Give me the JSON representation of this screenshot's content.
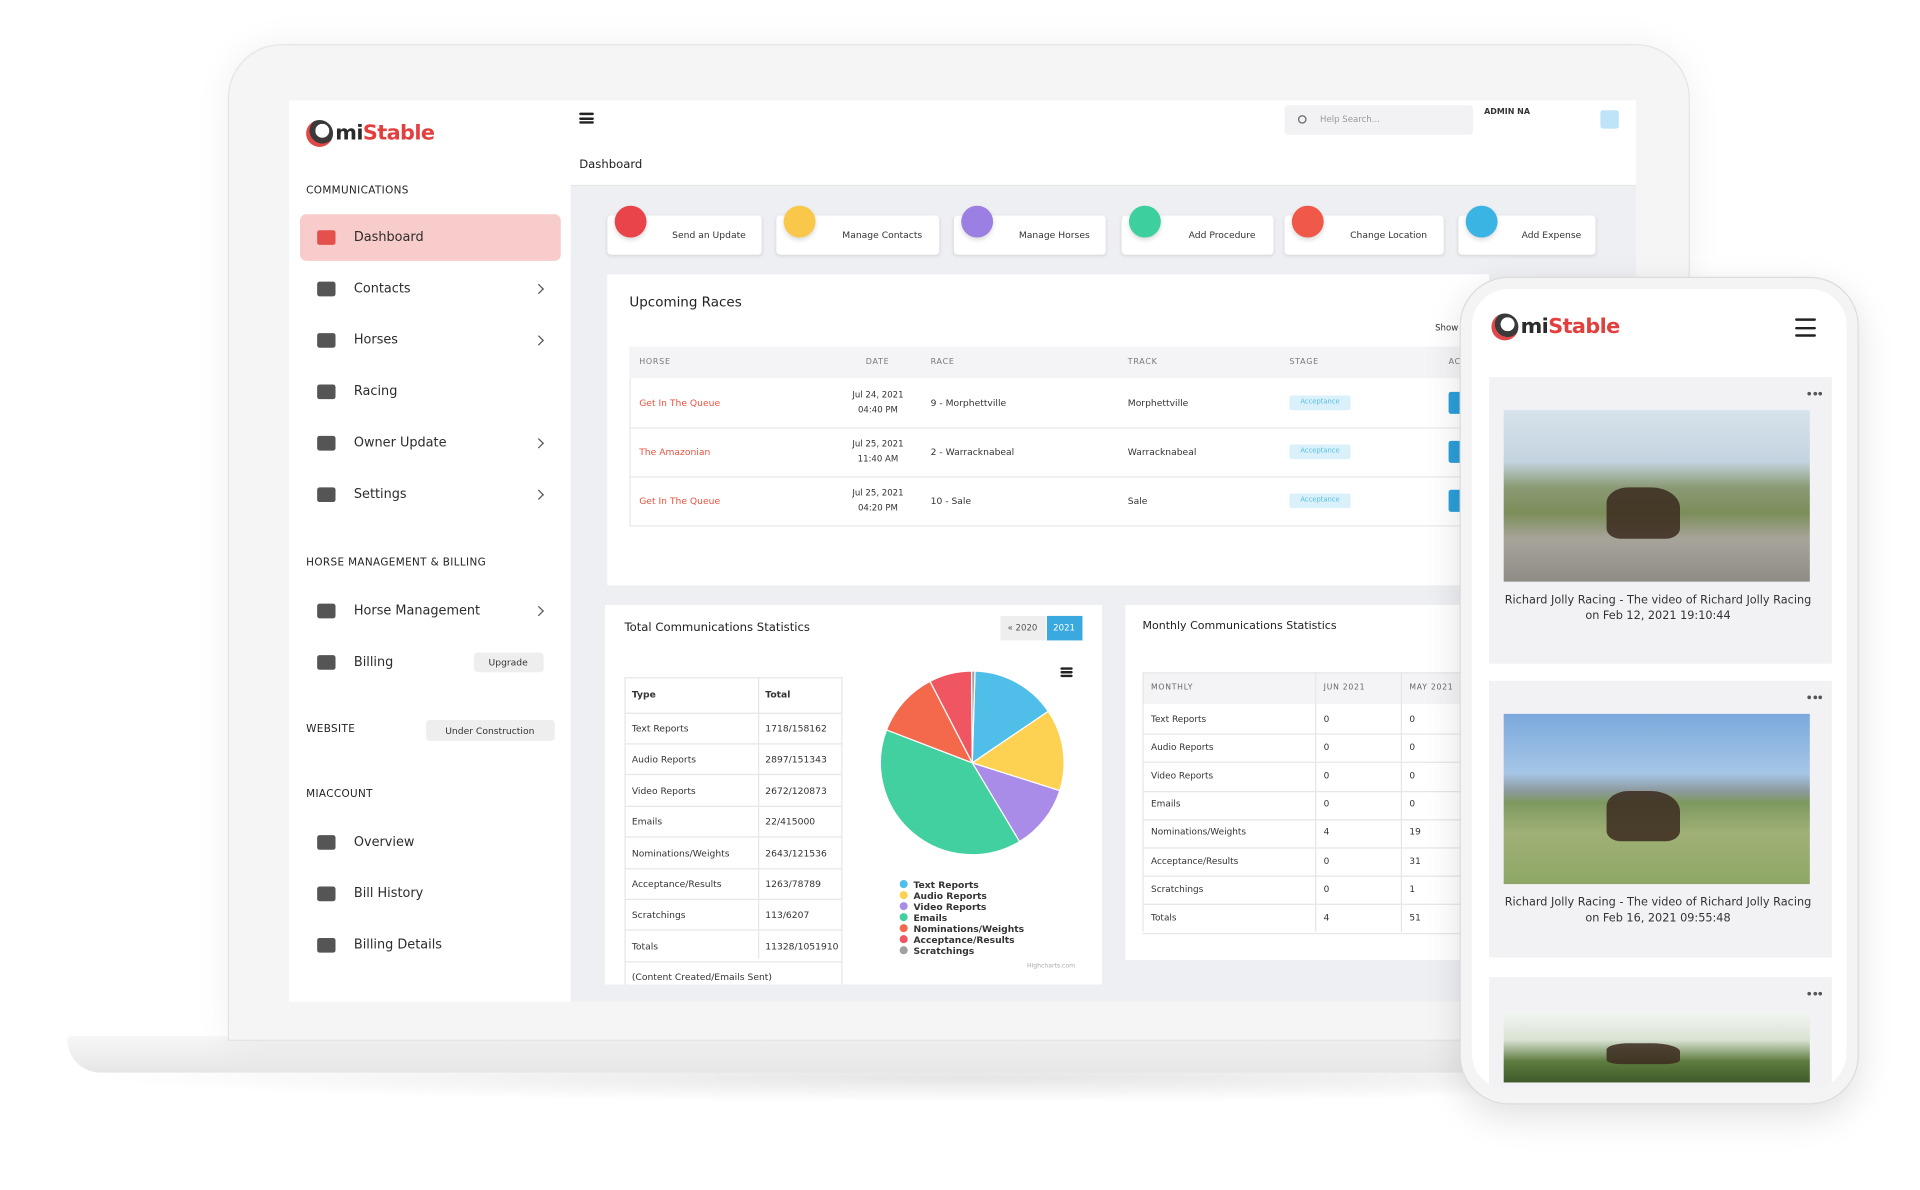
{
  "sidebar": {
    "brand": {
      "prefix": "mi",
      "suffix": "Stable"
    },
    "sections": [
      {
        "title": "COMMUNICATIONS",
        "items": [
          {
            "label": "Dashboard",
            "active": true
          },
          {
            "label": "Contacts",
            "submenu": true
          },
          {
            "label": "Horses",
            "submenu": true
          },
          {
            "label": "Racing"
          },
          {
            "label": "Owner Update",
            "submenu": true
          },
          {
            "label": "Settings",
            "submenu": true
          }
        ]
      },
      {
        "title": "HORSE MANAGEMENT & BILLING",
        "items": [
          {
            "label": "Horse Management",
            "submenu": true
          },
          {
            "label": "Billing",
            "badge": "Upgrade"
          }
        ]
      },
      {
        "title": "WEBSITE",
        "badge": "Under Construction",
        "items": []
      },
      {
        "title": "MIACCOUNT",
        "items": [
          {
            "label": "Overview"
          },
          {
            "label": "Bill History"
          },
          {
            "label": "Billing Details"
          }
        ]
      }
    ]
  },
  "header": {
    "search_placeholder": "Help Search...",
    "user": "ADMIN NA",
    "page_title": "Dashboard"
  },
  "quick_actions": [
    "Send an Update",
    "Manage Contacts",
    "Manage Horses",
    "Add Procedure",
    "Change Location",
    "Add Expense"
  ],
  "upcoming_races": {
    "title": "Upcoming Races",
    "show_label": "Show",
    "columns": [
      "HORSE",
      "DATE",
      "RACE",
      "TRACK",
      "STAGE",
      "AC"
    ],
    "rows": [
      {
        "horse": "Get In The Queue",
        "date": "Jul 24, 2021",
        "time": "04:40 PM",
        "race": "9 - Morphettville",
        "track": "Morphettville",
        "stage": "Acceptance"
      },
      {
        "horse": "The Amazonian",
        "date": "Jul 25, 2021",
        "time": "11:40 AM",
        "race": "2 - Warracknabeal",
        "track": "Warracknabeal",
        "stage": "Acceptance"
      },
      {
        "horse": "Get In The Queue",
        "date": "Jul 25, 2021",
        "time": "04:20 PM",
        "race": "10 - Sale",
        "track": "Sale",
        "stage": "Acceptance"
      }
    ]
  },
  "total_stats": {
    "title": "Total Communications Statistics",
    "years": [
      "« 2020",
      "2021"
    ],
    "columns": [
      "Type",
      "Total"
    ],
    "rows": [
      [
        "Text Reports",
        "1718/158162"
      ],
      [
        "Audio Reports",
        "2897/151343"
      ],
      [
        "Video Reports",
        "2672/120873"
      ],
      [
        "Emails",
        "22/415000"
      ],
      [
        "Nominations/Weights",
        "2643/121536"
      ],
      [
        "Acceptance/Results",
        "1263/78789"
      ],
      [
        "Scratchings",
        "113/6207"
      ],
      [
        "Totals",
        "11328/1051910"
      ]
    ],
    "footnote": "(Content Created/Emails Sent)"
  },
  "chart_data": {
    "type": "pie",
    "categories": [
      "Text Reports",
      "Audio Reports",
      "Video Reports",
      "Emails",
      "Nominations/Weights",
      "Acceptance/Results",
      "Scratchings"
    ],
    "values": [
      158162,
      151343,
      120873,
      415000,
      121536,
      78789,
      6207
    ],
    "colors": [
      "#4fbfe9",
      "#fdd152",
      "#a88ce8",
      "#43d0a0",
      "#f4694c",
      "#ef5661",
      "#a0a0a0"
    ],
    "credit": "Highcharts.com"
  },
  "monthly_stats": {
    "title": "Monthly Communications Statistics",
    "columns": [
      "MONTHLY",
      "JUN 2021",
      "MAY 2021"
    ],
    "rows": [
      [
        "Text Reports",
        0,
        0
      ],
      [
        "Audio Reports",
        0,
        0
      ],
      [
        "Video Reports",
        0,
        0
      ],
      [
        "Emails",
        0,
        0
      ],
      [
        "Nominations/Weights",
        4,
        19
      ],
      [
        "Acceptance/Results",
        0,
        31
      ],
      [
        "Scratchings",
        0,
        1
      ],
      [
        "Totals",
        4,
        51
      ]
    ]
  },
  "phone": {
    "brand": {
      "prefix": "mi",
      "suffix": "Stable"
    },
    "posts": [
      {
        "caption": "Richard Jolly Racing - The video of Richard Jolly Racing on Feb 12, 2021 19:10:44"
      },
      {
        "caption": "Richard Jolly Racing - The video of Richard Jolly Racing on Feb 16, 2021 09:55:48"
      },
      {}
    ]
  }
}
